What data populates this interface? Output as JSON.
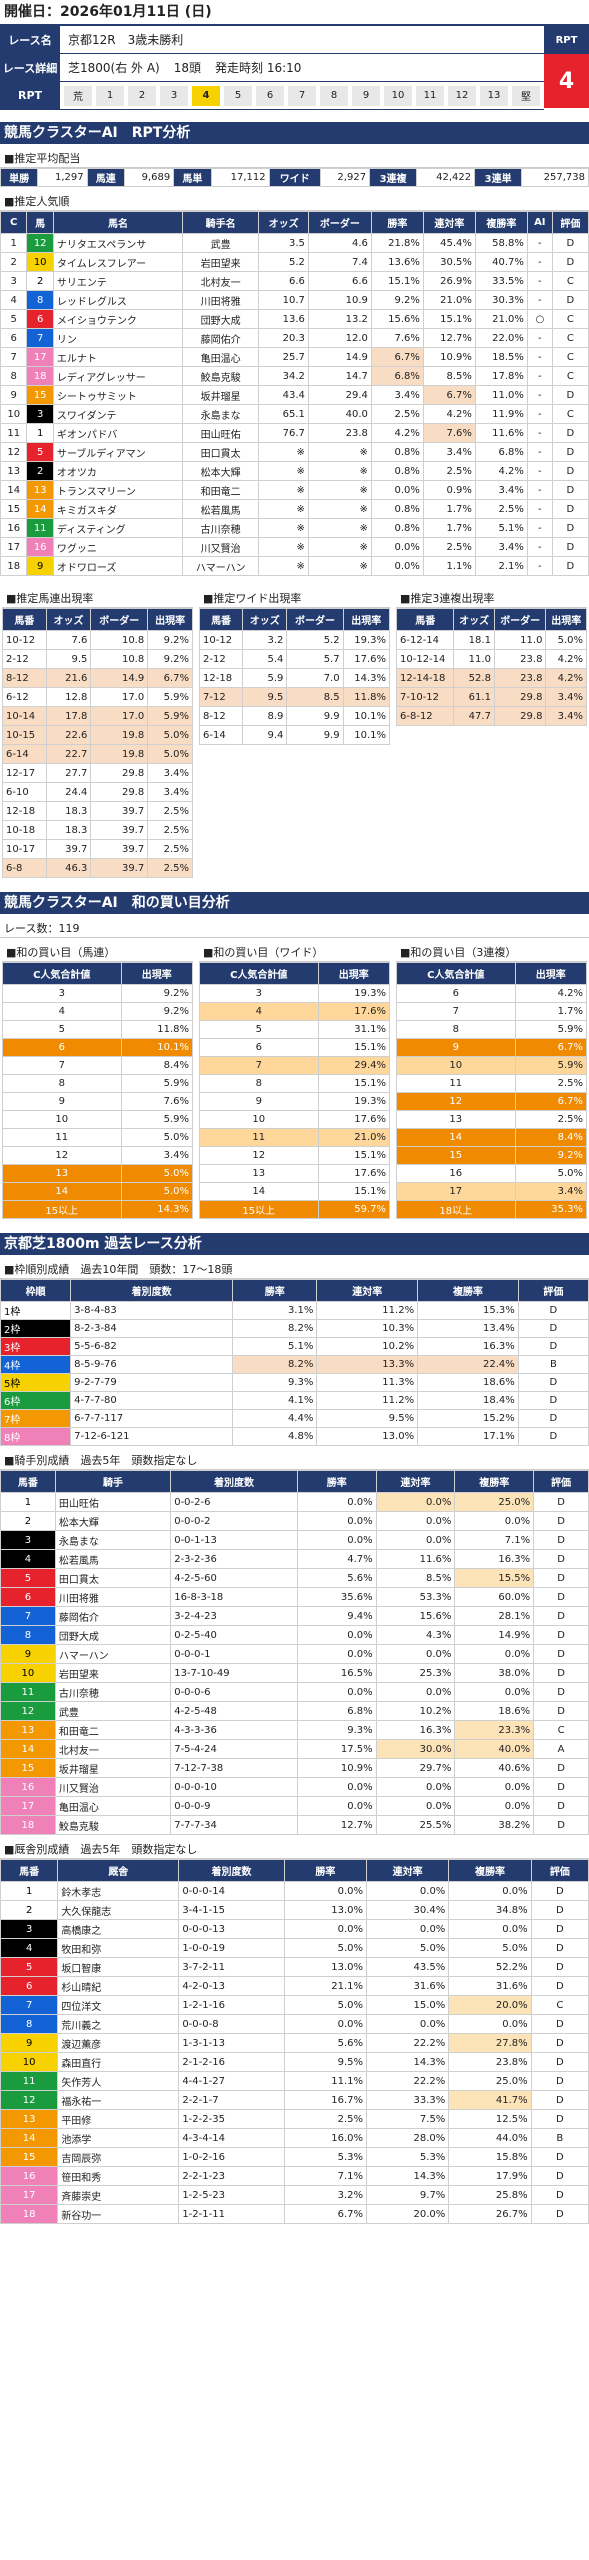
{
  "top": {
    "date": "開催日：2026年01月11日 (日)"
  },
  "race": {
    "name_label": "レース名",
    "name": "京都12R　3歳未勝利",
    "detail_label": "レース詳細",
    "course": "芝1800(右 外 A)",
    "heads": "18頭",
    "post": "発走時刻 16:10",
    "rpt_label": "RPT",
    "rpt_value": "4",
    "rpt_row_label": "RPT",
    "rpt_cells": [
      "荒",
      "1",
      "2",
      "3",
      "4",
      "5",
      "6",
      "7",
      "8",
      "9",
      "10",
      "11",
      "12",
      "13",
      "堅"
    ],
    "rpt_selected": 4
  },
  "sec1": {
    "title": "競馬クラスターAI　RPT分析"
  },
  "odds": {
    "sub": "■推定平均配当",
    "labels": [
      "単勝",
      "馬連",
      "馬単",
      "ワイド",
      "3連複",
      "3連単"
    ],
    "values": [
      "1,297",
      "9,689",
      "17,112",
      "2,927",
      "42,422",
      "257,738"
    ]
  },
  "pop": {
    "sub": "■推定人気順",
    "headers": [
      "C",
      "馬",
      "馬名",
      "騎手名",
      "オッズ",
      "ボーダー",
      "勝率",
      "連対率",
      "複勝率",
      "AI",
      "評価"
    ],
    "rows": [
      [
        "1",
        "12",
        "ナリタエスペランサ",
        "武豊",
        "3.5",
        "4.6",
        "21.8%",
        "45.4%",
        "58.8%",
        "-",
        "D",
        6
      ],
      [
        "2",
        "10",
        "タイムレスフレアー",
        "岩田望来",
        "5.2",
        "7.4",
        "13.6%",
        "30.5%",
        "40.7%",
        "-",
        "D",
        5
      ],
      [
        "3",
        "2",
        "サリエンテ",
        "北村友一",
        "6.6",
        "6.6",
        "15.1%",
        "26.9%",
        "33.5%",
        "-",
        "C",
        1
      ],
      [
        "4",
        "8",
        "レッドレグルス",
        "川田将雅",
        "10.7",
        "10.9",
        "9.2%",
        "21.0%",
        "30.3%",
        "-",
        "D",
        4
      ],
      [
        "5",
        "6",
        "メイショウテンク",
        "団野大成",
        "13.6",
        "13.2",
        "15.6%",
        "15.1%",
        "21.0%",
        "○",
        "C",
        3
      ],
      [
        "6",
        "7",
        "リン",
        "藤岡佑介",
        "20.3",
        "12.0",
        "7.6%",
        "12.7%",
        "22.0%",
        "-",
        "C",
        4
      ],
      [
        "7",
        "17",
        "エルナト",
        "亀田温心",
        "25.7",
        "14.9",
        "6.7%",
        "10.9%",
        "18.5%",
        "-",
        "C",
        8
      ],
      [
        "8",
        "18",
        "レディアグレッサー",
        "鮫島克駿",
        "34.2",
        "14.7",
        "6.8%",
        "8.5%",
        "17.8%",
        "-",
        "C",
        8
      ],
      [
        "9",
        "15",
        "シートゥサミット",
        "坂井瑠星",
        "43.4",
        "29.4",
        "3.4%",
        "6.7%",
        "11.0%",
        "-",
        "D",
        7
      ],
      [
        "10",
        "3",
        "スワイダンテ",
        "永島まな",
        "65.1",
        "40.0",
        "2.5%",
        "4.2%",
        "11.9%",
        "-",
        "C",
        2
      ],
      [
        "11",
        "1",
        "ギオンパドバ",
        "田山旺佑",
        "76.7",
        "23.8",
        "4.2%",
        "7.6%",
        "11.6%",
        "-",
        "D",
        1
      ],
      [
        "12",
        "5",
        "サーブルディアマン",
        "田口貫太",
        "※",
        "※",
        "0.8%",
        "3.4%",
        "6.8%",
        "-",
        "D",
        3
      ],
      [
        "13",
        "2",
        "オオツカ",
        "松本大輝",
        "※",
        "※",
        "0.8%",
        "2.5%",
        "4.2%",
        "-",
        "D",
        2
      ],
      [
        "14",
        "13",
        "トランスマリーン",
        "和田竜二",
        "※",
        "※",
        "0.0%",
        "0.9%",
        "3.4%",
        "-",
        "D",
        7
      ],
      [
        "15",
        "14",
        "キミガスキダ",
        "松若風馬",
        "※",
        "※",
        "0.8%",
        "1.7%",
        "2.5%",
        "-",
        "D",
        7
      ],
      [
        "16",
        "11",
        "ディスティング",
        "古川奈穂",
        "※",
        "※",
        "0.8%",
        "1.7%",
        "5.1%",
        "-",
        "D",
        6
      ],
      [
        "17",
        "16",
        "ワグッニ",
        "川又賢治",
        "※",
        "※",
        "0.0%",
        "2.5%",
        "3.4%",
        "-",
        "D",
        8
      ],
      [
        "18",
        "9",
        "オドワローズ",
        "ハマーハン",
        "※",
        "※",
        "0.0%",
        "1.1%",
        "2.1%",
        "-",
        "D",
        5
      ]
    ]
  },
  "umaren": {
    "sub": "■推定馬連出現率",
    "headers": [
      "馬番",
      "オッズ",
      "ボーダー",
      "出現率"
    ],
    "rows": [
      [
        "10-12",
        "7.6",
        "10.8",
        "9.2%"
      ],
      [
        "2-12",
        "9.5",
        "10.8",
        "9.2%"
      ],
      [
        "8-12",
        "21.6",
        "14.9",
        "6.7%"
      ],
      [
        "6-12",
        "12.8",
        "17.0",
        "5.9%"
      ],
      [
        "10-14",
        "17.8",
        "17.0",
        "5.9%"
      ],
      [
        "10-15",
        "22.6",
        "19.8",
        "5.0%"
      ],
      [
        "6-14",
        "22.7",
        "19.8",
        "5.0%"
      ],
      [
        "12-17",
        "27.7",
        "29.8",
        "3.4%"
      ],
      [
        "6-10",
        "24.4",
        "29.8",
        "3.4%"
      ],
      [
        "12-18",
        "18.3",
        "39.7",
        "2.5%"
      ],
      [
        "10-18",
        "18.3",
        "39.7",
        "2.5%"
      ],
      [
        "10-17",
        "39.7",
        "39.7",
        "2.5%"
      ],
      [
        "6-8",
        "46.3",
        "39.7",
        "2.5%"
      ]
    ],
    "hl": [
      2,
      4,
      5,
      6,
      12
    ]
  },
  "wide": {
    "sub": "■推定ワイド出現率",
    "headers": [
      "馬番",
      "オッズ",
      "ボーダー",
      "出現率"
    ],
    "rows": [
      [
        "10-12",
        "3.2",
        "5.2",
        "19.3%"
      ],
      [
        "2-12",
        "5.4",
        "5.7",
        "17.6%"
      ],
      [
        "12-18",
        "5.9",
        "7.0",
        "14.3%"
      ],
      [
        "7-12",
        "9.5",
        "8.5",
        "11.8%"
      ],
      [
        "8-12",
        "8.9",
        "9.9",
        "10.1%"
      ],
      [
        "6-14",
        "9.4",
        "9.9",
        "10.1%"
      ]
    ],
    "hl": [
      3
    ]
  },
  "trio": {
    "sub": "■推定3連複出現率",
    "headers": [
      "馬番",
      "オッズ",
      "ボーダー",
      "出現率"
    ],
    "rows": [
      [
        "6-12-14",
        "18.1",
        "11.0",
        "5.0%"
      ],
      [
        "10-12-14",
        "11.0",
        "23.8",
        "4.2%"
      ],
      [
        "12-14-18",
        "52.8",
        "23.8",
        "4.2%"
      ],
      [
        "7-10-12",
        "61.1",
        "29.8",
        "3.4%"
      ],
      [
        "6-8-12",
        "47.7",
        "29.8",
        "3.4%"
      ]
    ],
    "hl": [
      2,
      3,
      4
    ]
  },
  "sec2": {
    "title": "競馬クラスターAI　和の買い目分析",
    "count": "レース数：119"
  },
  "wa": {
    "subs": [
      "■和の買い目（馬連）",
      "■和の買い目（ワイド）",
      "■和の買い目（3連複）"
    ],
    "h1": "C人気合計値",
    "h2": "出現率",
    "t1": [
      [
        "3",
        "9.2%",
        ""
      ],
      [
        "4",
        "9.2%",
        ""
      ],
      [
        "5",
        "11.8%",
        ""
      ],
      [
        "6",
        "10.1%",
        "o"
      ],
      [
        "7",
        "8.4%",
        ""
      ],
      [
        "8",
        "5.9%",
        ""
      ],
      [
        "9",
        "7.6%",
        ""
      ],
      [
        "10",
        "5.9%",
        ""
      ],
      [
        "11",
        "5.0%",
        ""
      ],
      [
        "12",
        "3.4%",
        ""
      ],
      [
        "13",
        "5.0%",
        "o"
      ],
      [
        "14",
        "5.0%",
        "o"
      ],
      [
        "15以上",
        "14.3%",
        "o"
      ]
    ],
    "t2": [
      [
        "3",
        "19.3%",
        ""
      ],
      [
        "4",
        "17.6%",
        "p"
      ],
      [
        "5",
        "31.1%",
        ""
      ],
      [
        "6",
        "15.1%",
        ""
      ],
      [
        "7",
        "29.4%",
        "p"
      ],
      [
        "8",
        "15.1%",
        ""
      ],
      [
        "9",
        "19.3%",
        ""
      ],
      [
        "10",
        "17.6%",
        ""
      ],
      [
        "11",
        "21.0%",
        "p"
      ],
      [
        "12",
        "15.1%",
        ""
      ],
      [
        "13",
        "17.6%",
        ""
      ],
      [
        "14",
        "15.1%",
        ""
      ],
      [
        "15以上",
        "59.7%",
        "o"
      ]
    ],
    "t3": [
      [
        "6",
        "4.2%",
        ""
      ],
      [
        "7",
        "1.7%",
        ""
      ],
      [
        "8",
        "5.9%",
        ""
      ],
      [
        "9",
        "6.7%",
        "o"
      ],
      [
        "10",
        "5.9%",
        "p"
      ],
      [
        "11",
        "2.5%",
        ""
      ],
      [
        "12",
        "6.7%",
        "o"
      ],
      [
        "13",
        "2.5%",
        ""
      ],
      [
        "14",
        "8.4%",
        "o"
      ],
      [
        "15",
        "9.2%",
        "o"
      ],
      [
        "16",
        "5.0%",
        ""
      ],
      [
        "17",
        "3.4%",
        "p"
      ],
      [
        "18以上",
        "35.3%",
        "o"
      ]
    ]
  },
  "sec3": {
    "title": "京都芝1800m 過去レース分析"
  },
  "waku": {
    "sub": "■枠順別成績　過去10年間　頭数：17～18頭",
    "headers": [
      "枠順",
      "着別度数",
      "勝率",
      "連対率",
      "複勝率",
      "評価"
    ],
    "rows": [
      [
        "1枠",
        "3-8-4-83",
        "3.1%",
        "11.2%",
        "15.3%",
        "D",
        "",
        1
      ],
      [
        "2枠",
        "8-2-3-84",
        "8.2%",
        "10.3%",
        "13.4%",
        "D",
        "",
        2
      ],
      [
        "3枠",
        "5-5-6-82",
        "5.1%",
        "10.2%",
        "16.3%",
        "D",
        "",
        3
      ],
      [
        "4枠",
        "8-5-9-76",
        "8.2%",
        "13.3%",
        "22.4%",
        "B",
        "3",
        4
      ],
      [
        "5枠",
        "9-2-7-79",
        "9.3%",
        "11.3%",
        "18.6%",
        "D",
        "",
        5
      ],
      [
        "6枠",
        "4-7-7-80",
        "4.1%",
        "11.2%",
        "18.4%",
        "D",
        "",
        6
      ],
      [
        "7枠",
        "6-7-7-117",
        "4.4%",
        "9.5%",
        "15.2%",
        "D",
        "",
        7
      ],
      [
        "8枠",
        "7-12-6-121",
        "4.8%",
        "13.0%",
        "17.1%",
        "D",
        "",
        8
      ]
    ]
  },
  "jockey": {
    "sub": "■騎手別成績　過去5年　頭数指定なし",
    "headers": [
      "馬番",
      "騎手",
      "着別度数",
      "勝率",
      "連対率",
      "複勝率",
      "評価"
    ],
    "rows": [
      [
        "1",
        "田山旺佑",
        "0-0-2-6",
        "0.0%",
        "0.0%",
        "25.0%",
        "D",
        "3",
        1
      ],
      [
        "2",
        "松本大輝",
        "0-0-0-2",
        "0.0%",
        "0.0%",
        "0.0%",
        "D",
        "",
        1
      ],
      [
        "3",
        "永島まな",
        "0-0-1-13",
        "0.0%",
        "0.0%",
        "7.1%",
        "D",
        "",
        2
      ],
      [
        "4",
        "松若風馬",
        "2-3-2-36",
        "4.7%",
        "11.6%",
        "16.3%",
        "D",
        "",
        2
      ],
      [
        "5",
        "田口貫太",
        "4-2-5-60",
        "5.6%",
        "8.5%",
        "15.5%",
        "D",
        "1",
        3
      ],
      [
        "6",
        "川田将雅",
        "16-8-3-18",
        "35.6%",
        "53.3%",
        "60.0%",
        "D",
        "",
        3
      ],
      [
        "7",
        "藤岡佑介",
        "3-2-4-23",
        "9.4%",
        "15.6%",
        "28.1%",
        "D",
        "",
        4
      ],
      [
        "8",
        "団野大成",
        "0-2-5-40",
        "0.0%",
        "4.3%",
        "14.9%",
        "D",
        "",
        4
      ],
      [
        "9",
        "ハマーハン",
        "0-0-0-1",
        "0.0%",
        "0.0%",
        "0.0%",
        "D",
        "",
        5
      ],
      [
        "10",
        "岩田望来",
        "13-7-10-49",
        "16.5%",
        "25.3%",
        "38.0%",
        "D",
        "",
        5
      ],
      [
        "11",
        "古川奈穂",
        "0-0-0-6",
        "0.0%",
        "0.0%",
        "0.0%",
        "D",
        "",
        6
      ],
      [
        "12",
        "武豊",
        "4-2-5-48",
        "6.8%",
        "10.2%",
        "18.6%",
        "D",
        "",
        6
      ],
      [
        "13",
        "和田竜二",
        "4-3-3-36",
        "9.3%",
        "16.3%",
        "23.3%",
        "C",
        "1",
        7
      ],
      [
        "14",
        "北村友一",
        "7-5-4-24",
        "17.5%",
        "30.0%",
        "40.0%",
        "A",
        "3",
        7
      ],
      [
        "15",
        "坂井瑠星",
        "7-12-7-38",
        "10.9%",
        "29.7%",
        "40.6%",
        "D",
        "",
        7
      ],
      [
        "16",
        "川又賢治",
        "0-0-0-10",
        "0.0%",
        "0.0%",
        "0.0%",
        "D",
        "",
        8
      ],
      [
        "17",
        "亀田温心",
        "0-0-0-9",
        "0.0%",
        "0.0%",
        "0.0%",
        "D",
        "",
        8
      ],
      [
        "18",
        "鮫島克駿",
        "7-7-7-34",
        "12.7%",
        "25.5%",
        "38.2%",
        "D",
        "",
        8
      ]
    ]
  },
  "trainer": {
    "sub": "■厩舎別成績　過去5年　頭数指定なし",
    "headers": [
      "馬番",
      "厩舎",
      "着別度数",
      "勝率",
      "連対率",
      "複勝率",
      "評価"
    ],
    "rows": [
      [
        "1",
        "鈴木孝志",
        "0-0-0-14",
        "0.0%",
        "0.0%",
        "0.0%",
        "D",
        "",
        1
      ],
      [
        "2",
        "大久保龍志",
        "3-4-1-15",
        "13.0%",
        "30.4%",
        "34.8%",
        "D",
        "",
        1
      ],
      [
        "3",
        "高橋康之",
        "0-0-0-13",
        "0.0%",
        "0.0%",
        "0.0%",
        "D",
        "",
        2
      ],
      [
        "4",
        "牧田和弥",
        "1-0-0-19",
        "5.0%",
        "5.0%",
        "5.0%",
        "D",
        "",
        2
      ],
      [
        "5",
        "坂口智康",
        "3-7-2-11",
        "13.0%",
        "43.5%",
        "52.2%",
        "D",
        "",
        3
      ],
      [
        "6",
        "杉山晴紀",
        "4-2-0-13",
        "21.1%",
        "31.6%",
        "31.6%",
        "D",
        "",
        3
      ],
      [
        "7",
        "四位洋文",
        "1-2-1-16",
        "5.0%",
        "15.0%",
        "20.0%",
        "C",
        "1",
        4
      ],
      [
        "8",
        "荒川義之",
        "0-0-0-8",
        "0.0%",
        "0.0%",
        "0.0%",
        "D",
        "",
        4
      ],
      [
        "9",
        "渡辺薫彦",
        "1-3-1-13",
        "5.6%",
        "22.2%",
        "27.8%",
        "D",
        "1",
        5
      ],
      [
        "10",
        "森田直行",
        "2-1-2-16",
        "9.5%",
        "14.3%",
        "23.8%",
        "D",
        "",
        5
      ],
      [
        "11",
        "矢作芳人",
        "4-4-1-27",
        "11.1%",
        "22.2%",
        "25.0%",
        "D",
        "",
        6
      ],
      [
        "12",
        "福永祐一",
        "2-2-1-7",
        "16.7%",
        "33.3%",
        "41.7%",
        "D",
        "1",
        6
      ],
      [
        "13",
        "平田修",
        "1-2-2-35",
        "2.5%",
        "7.5%",
        "12.5%",
        "D",
        "",
        7
      ],
      [
        "14",
        "池添学",
        "4-3-4-14",
        "16.0%",
        "28.0%",
        "44.0%",
        "B",
        "",
        7
      ],
      [
        "15",
        "吉岡辰弥",
        "1-0-2-16",
        "5.3%",
        "5.3%",
        "15.8%",
        "D",
        "",
        7
      ],
      [
        "16",
        "笹田和秀",
        "2-2-1-23",
        "7.1%",
        "14.3%",
        "17.9%",
        "D",
        "",
        8
      ],
      [
        "17",
        "斉藤崇史",
        "1-2-5-23",
        "3.2%",
        "9.7%",
        "25.8%",
        "D",
        "",
        8
      ],
      [
        "18",
        "新谷功一",
        "1-2-1-11",
        "6.7%",
        "20.0%",
        "26.7%",
        "D",
        "",
        8
      ]
    ]
  }
}
